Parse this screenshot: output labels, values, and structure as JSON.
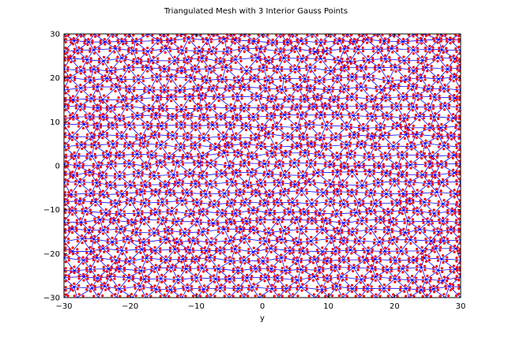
{
  "figure": {
    "background": "#ffffff",
    "mesh_edge_color": "#0000ff",
    "gauss_point_color": "#ff0000",
    "frame_color": "#000000"
  },
  "chart_data": {
    "type": "scatter",
    "title": "Triangulated Mesh with 3 Interior Gauss Points",
    "xlabel": "y",
    "ylabel": "",
    "xlim": [
      -30,
      30
    ],
    "ylim": [
      -30,
      30
    ],
    "xticks": [
      -30,
      -20,
      -10,
      0,
      10,
      20,
      30
    ],
    "yticks": [
      -30,
      -20,
      -10,
      0,
      10,
      20,
      30
    ],
    "x_tick_labels": [
      "−30",
      "−20",
      "−10",
      "0",
      "10",
      "20",
      "30"
    ],
    "y_tick_labels": [
      "−30",
      "−20",
      "−10",
      "0",
      "10",
      "20",
      "30"
    ],
    "grid": false,
    "legend": "none",
    "mesh": {
      "description_of_structure": "unstructured triangulation of the square [-30,30] x [-30,30]",
      "node_spacing_approx": 2.5,
      "gauss_points_per_triangle": 3,
      "series": [
        {
          "role": "edges",
          "color": "#0000ff"
        },
        {
          "role": "gauss_points",
          "color": "#ff0000"
        }
      ]
    }
  }
}
